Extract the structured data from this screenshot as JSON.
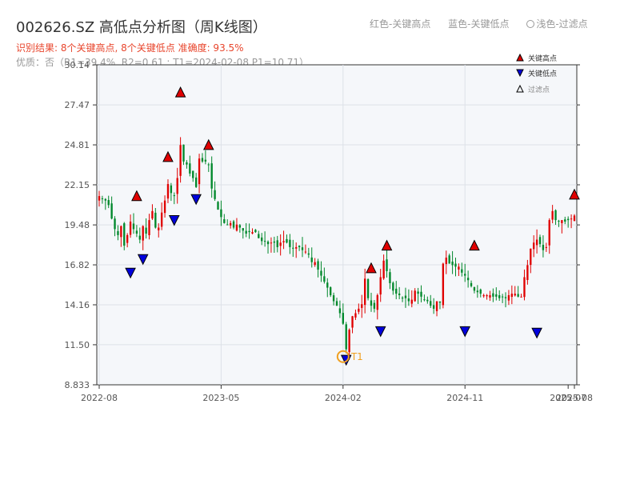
{
  "header": {
    "title": "002626.SZ 高低点分析图（周K线图）",
    "result_line": "识别结果: 8个关键高点, 8个关键低点  准确度: 93.5%",
    "quality_line": "优质：否（R1=39.4%, R2=0.61 ; T1=2024-02-08 P1=10.71）",
    "legend_red": "红色-关键高点",
    "legend_blue": "蓝色-关键低点",
    "legend_light": "浅色-过滤点"
  },
  "colors": {
    "up": "#e00000",
    "down": "#00882b",
    "high_marker": "#e00000",
    "low_marker": "#0000dd",
    "t1_marker": "#f0a020",
    "plot_bg": "#f5f7fa",
    "grid": "#dde1e8"
  },
  "chart_data": {
    "type": "candlestick",
    "ylim": [
      8.833,
      30.14
    ],
    "yticks": [
      "8.833",
      "11.50",
      "14.16",
      "16.82",
      "19.48",
      "22.15",
      "24.81",
      "27.47",
      "30.14"
    ],
    "ytick_values": [
      8.833,
      11.5,
      14.16,
      16.82,
      19.48,
      22.15,
      24.81,
      27.47,
      30.14
    ],
    "xticks": [
      "2022-08",
      "2023-05",
      "2024-02",
      "2024-11",
      "2025-07",
      "2025-08"
    ],
    "xtick_weeks": [
      0,
      39,
      78,
      117,
      150,
      152
    ],
    "legend": {
      "position": "top-right",
      "high": "关键高点",
      "low": "关键低点",
      "filtered": "过滤点"
    },
    "t1_label": "T1",
    "weekly_closes": [
      21.4,
      21.2,
      21.1,
      20.8,
      19.9,
      19.2,
      18.8,
      19.4,
      18.1,
      18.8,
      19.7,
      19.2,
      18.9,
      18.5,
      19.4,
      18.9,
      19.8,
      20.4,
      19.3,
      19.3,
      20.3,
      21.1,
      22.2,
      21.6,
      21.4,
      22.6,
      24.8,
      23.7,
      23.5,
      22.9,
      22.6,
      22.0,
      23.9,
      23.7,
      23.7,
      23.5,
      21.9,
      21.2,
      20.5,
      20.0,
      19.6,
      19.5,
      19.6,
      19.3,
      19.5,
      19.3,
      19.1,
      18.9,
      19.0,
      19.0,
      19.0,
      18.6,
      18.4,
      18.4,
      18.2,
      18.3,
      18.3,
      18.0,
      18.3,
      18.4,
      18.3,
      18.0,
      17.9,
      18.0,
      18.0,
      17.8,
      17.7,
      17.5,
      17.0,
      17.0,
      16.5,
      16.1,
      15.7,
      15.3,
      14.8,
      14.4,
      14.1,
      13.6,
      12.9,
      11.2,
      12.5,
      13.4,
      13.6,
      13.9,
      14.2,
      15.9,
      14.6,
      14.1,
      13.9,
      14.8,
      16.0,
      17.1,
      16.4,
      15.6,
      15.1,
      14.9,
      14.8,
      14.6,
      14.6,
      14.4,
      14.5,
      15.1,
      14.9,
      14.7,
      14.5,
      14.4,
      14.1,
      13.9,
      14.4,
      14.3,
      16.9,
      17.3,
      16.9,
      16.8,
      16.7,
      16.7,
      16.3,
      16.1,
      15.8,
      15.4,
      15.1,
      15.0,
      14.9,
      14.8,
      14.8,
      14.8,
      14.7,
      14.7,
      14.6,
      14.7,
      14.6,
      14.8,
      14.9,
      14.9,
      14.7,
      14.7,
      16.0,
      16.8,
      17.9,
      18.3,
      18.5,
      18.2,
      17.8,
      18.0,
      19.8,
      20.4,
      19.8,
      19.7,
      19.8,
      19.7,
      19.8,
      19.9,
      20.1
    ],
    "highs": [
      {
        "week": 12,
        "price": 21.1,
        "label": "关键高点"
      },
      {
        "week": 22,
        "price": 23.7,
        "label": "关键高点"
      },
      {
        "week": 26,
        "price": 28.0,
        "label": "关键高点"
      },
      {
        "week": 35,
        "price": 24.5,
        "label": "关键高点"
      },
      {
        "week": 87,
        "price": 16.3,
        "label": "关键高点"
      },
      {
        "week": 92,
        "price": 17.8,
        "label": "关键高点"
      },
      {
        "week": 120,
        "price": 17.8,
        "label": "关键高点"
      },
      {
        "week": 152,
        "price": 21.2,
        "label": "关键高点"
      }
    ],
    "lows": [
      {
        "week": 10,
        "price": 16.6,
        "label": "关键低点"
      },
      {
        "week": 14,
        "price": 17.5,
        "label": "关键低点"
      },
      {
        "week": 24,
        "price": 20.1,
        "label": "关键低点"
      },
      {
        "week": 31,
        "price": 21.5,
        "label": "关键低点"
      },
      {
        "week": 79,
        "price": 10.8,
        "label": "关键低点"
      },
      {
        "week": 90,
        "price": 12.7,
        "label": "关键低点"
      },
      {
        "week": 117,
        "price": 12.7,
        "label": "关键低点"
      },
      {
        "week": 140,
        "price": 12.6,
        "label": "关键低点"
      }
    ],
    "t1": {
      "week": 78,
      "price": 10.71
    }
  }
}
